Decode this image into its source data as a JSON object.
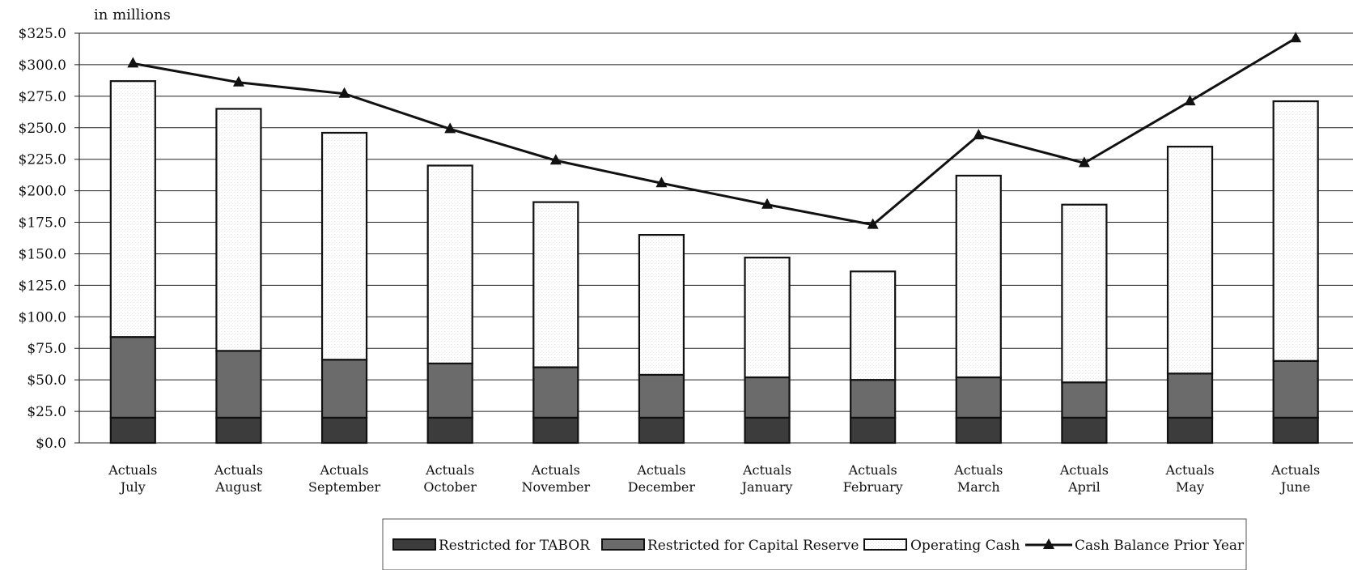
{
  "chart_data": {
    "type": "bar",
    "stacked": true,
    "unit_label": "in millions",
    "categories": [
      [
        "Actuals",
        "July"
      ],
      [
        "Actuals",
        "August"
      ],
      [
        "Actuals",
        "September"
      ],
      [
        "Actuals",
        "October"
      ],
      [
        "Actuals",
        "November"
      ],
      [
        "Actuals",
        "December"
      ],
      [
        "Actuals",
        "January"
      ],
      [
        "Actuals",
        "February"
      ],
      [
        "Actuals",
        "March"
      ],
      [
        "Actuals",
        "April"
      ],
      [
        "Actuals",
        "May"
      ],
      [
        "Actuals",
        "June"
      ]
    ],
    "ylim": [
      0,
      325
    ],
    "yticks": [
      "$0.0",
      "$25.0",
      "$50.0",
      "$75.0",
      "$100.0",
      "$125.0",
      "$150.0",
      "$175.0",
      "$200.0",
      "$225.0",
      "$250.0",
      "$275.0",
      "$300.0",
      "$325.0"
    ],
    "grid": true,
    "legend_position": "bottom",
    "series": [
      {
        "name": "Restricted for TABOR",
        "kind": "bar",
        "color": "#3c3c3c",
        "values": [
          20,
          20,
          20,
          20,
          20,
          20,
          20,
          20,
          20,
          20,
          20,
          20
        ]
      },
      {
        "name": "Restricted for Capital Reserve",
        "kind": "bar",
        "color": "#6b6b6b",
        "values": [
          64,
          53,
          46,
          43,
          40,
          34,
          32,
          30,
          32,
          28,
          35,
          45
        ]
      },
      {
        "name": "Operating Cash",
        "kind": "bar",
        "color": "#ffffff",
        "values": [
          203,
          192,
          180,
          157,
          131,
          111,
          95,
          86,
          160,
          141,
          180,
          206
        ]
      },
      {
        "name": "Cash Balance Prior Year",
        "kind": "line",
        "color": "#111111",
        "marker": "triangle",
        "values": [
          301,
          286,
          277,
          249,
          224,
          206,
          189,
          173,
          244,
          222,
          271,
          321
        ]
      }
    ]
  }
}
